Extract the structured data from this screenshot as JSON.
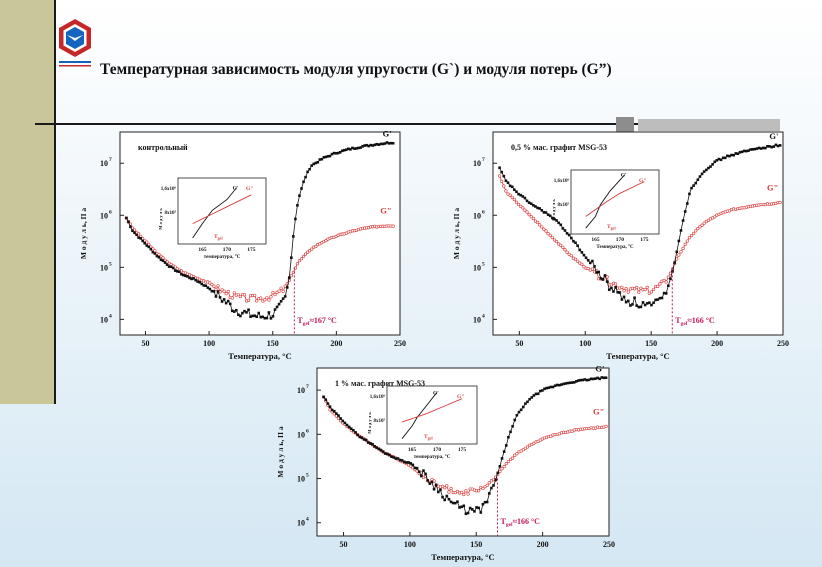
{
  "title": "Температурная зависимость модуля упругости (G`) и модуля потерь (G”)",
  "colors": {
    "sidebar": "#c9c79a",
    "g_prime": "#111111",
    "g_double_prime": "#d93a3a",
    "marker": "#c2185b"
  },
  "chart_data": [
    {
      "type": "scatter",
      "title": "контрольный",
      "xlabel": "Температура, °C",
      "ylabel": "М о д у л ь, П а",
      "xlim": [
        30,
        250
      ],
      "ylim_log10": [
        3.7,
        7.6
      ],
      "xticks": [
        "50",
        "100",
        "150",
        "200",
        "250"
      ],
      "yticks": [
        {
          "v": 4,
          "mant": "10",
          "exp": "4"
        },
        {
          "v": 5,
          "mant": "10",
          "exp": "5"
        },
        {
          "v": 6,
          "mant": "10",
          "exp": "6"
        },
        {
          "v": 7,
          "mant": "10",
          "exp": "7"
        }
      ],
      "series": [
        {
          "name": "G'",
          "x": [
            35,
            40,
            50,
            60,
            70,
            80,
            90,
            100,
            110,
            120,
            130,
            140,
            150,
            155,
            160,
            163,
            165,
            167,
            170,
            175,
            180,
            190,
            200,
            210,
            220,
            230,
            240,
            245
          ],
          "log10": [
            5.95,
            5.7,
            5.45,
            5.2,
            5.0,
            4.85,
            4.75,
            4.6,
            4.4,
            4.2,
            4.1,
            4.05,
            4.1,
            4.2,
            4.4,
            4.8,
            5.3,
            5.8,
            6.3,
            6.7,
            6.95,
            7.1,
            7.2,
            7.27,
            7.32,
            7.36,
            7.39,
            7.4
          ]
        },
        {
          "name": "G''",
          "x": [
            35,
            40,
            50,
            60,
            70,
            80,
            90,
            100,
            110,
            120,
            130,
            140,
            150,
            160,
            165,
            170,
            180,
            190,
            200,
            210,
            220,
            230,
            240,
            245
          ],
          "log10": [
            5.95,
            5.75,
            5.5,
            5.25,
            5.05,
            4.9,
            4.8,
            4.7,
            4.55,
            4.45,
            4.4,
            4.4,
            4.45,
            4.6,
            4.85,
            5.1,
            5.35,
            5.5,
            5.6,
            5.68,
            5.74,
            5.78,
            5.8,
            5.8
          ]
        }
      ],
      "series_labels": [
        "G'",
        "G\""
      ],
      "marker": {
        "x": 167,
        "label_T": "T",
        "label_sub": "gel",
        "label_val": "≈167 °C"
      },
      "inset": {
        "ytick_labels": [
          "1,6x10⁶",
          "8x10⁵"
        ],
        "xtick_labels": [
          "165",
          "170",
          "175"
        ],
        "xlabel": "температура, °C",
        "ylabel": "М о д у л ь",
        "labels": [
          "G'",
          "G\""
        ],
        "tgel_label": "T",
        "tgel_sub": "gel",
        "g1": [
          [
            163,
            4.0
          ],
          [
            165,
            5.2
          ],
          [
            167,
            6.3
          ],
          [
            170,
            7.2
          ],
          [
            172,
            8.2
          ]
        ],
        "g2": [
          [
            163,
            5.2
          ],
          [
            165,
            5.6
          ],
          [
            167,
            6.0
          ],
          [
            170,
            6.6
          ],
          [
            175,
            7.6
          ]
        ]
      }
    },
    {
      "type": "scatter",
      "title": "0,5 % мас. графит MSG-53",
      "xlabel": "Температура, °C",
      "ylabel": "М о д у л ь, П а",
      "xlim": [
        30,
        250
      ],
      "ylim_log10": [
        3.7,
        7.6
      ],
      "xticks": [
        "50",
        "100",
        "150",
        "200",
        "250"
      ],
      "yticks": [
        {
          "v": 4,
          "mant": "10",
          "exp": "4"
        },
        {
          "v": 5,
          "mant": "10",
          "exp": "5"
        },
        {
          "v": 6,
          "mant": "10",
          "exp": "6"
        },
        {
          "v": 7,
          "mant": "10",
          "exp": "7"
        }
      ],
      "series": [
        {
          "name": "G'",
          "x": [
            35,
            40,
            50,
            60,
            70,
            80,
            90,
            100,
            110,
            120,
            130,
            140,
            150,
            155,
            160,
            165,
            168,
            170,
            175,
            180,
            190,
            200,
            210,
            220,
            230,
            240,
            248
          ],
          "log10": [
            6.9,
            6.65,
            6.4,
            6.2,
            6.05,
            5.85,
            5.55,
            5.2,
            4.9,
            4.6,
            4.4,
            4.3,
            4.25,
            4.3,
            4.45,
            4.8,
            5.1,
            5.4,
            6.0,
            6.5,
            6.85,
            7.05,
            7.15,
            7.22,
            7.28,
            7.32,
            7.35
          ]
        },
        {
          "name": "G''",
          "x": [
            35,
            40,
            50,
            60,
            70,
            80,
            90,
            100,
            110,
            120,
            130,
            140,
            150,
            160,
            165,
            170,
            180,
            190,
            200,
            210,
            220,
            230,
            240,
            248
          ],
          "log10": [
            6.75,
            6.45,
            6.2,
            5.95,
            5.7,
            5.45,
            5.2,
            5.0,
            4.85,
            4.7,
            4.6,
            4.55,
            4.55,
            4.7,
            4.9,
            5.2,
            5.6,
            5.85,
            6.0,
            6.1,
            6.15,
            6.2,
            6.22,
            6.25
          ]
        }
      ],
      "series_labels": [
        "G'",
        "G\""
      ],
      "marker": {
        "x": 166,
        "label_T": "T",
        "label_sub": "gel",
        "label_val": "≈166 °C"
      },
      "inset": {
        "ytick_labels": [
          "1,6x10⁶",
          "8x10⁵"
        ],
        "xtick_labels": [
          "165",
          "170",
          "175"
        ],
        "xlabel": "Температура, °C",
        "ylabel": "М о д у л ь",
        "labels": [
          "G'",
          "G\""
        ],
        "tgel_label": "T",
        "tgel_sub": "gel",
        "g1": [
          [
            163,
            4.0
          ],
          [
            165,
            5.0
          ],
          [
            166,
            6.0
          ],
          [
            168,
            7.2
          ],
          [
            171,
            8.6
          ]
        ],
        "g2": [
          [
            163,
            5.0
          ],
          [
            165,
            5.6
          ],
          [
            167,
            6.2
          ],
          [
            170,
            7.0
          ],
          [
            175,
            8.0
          ]
        ]
      }
    },
    {
      "type": "scatter",
      "title": "1 % мас. графит MSG-53",
      "xlabel": "Температура, °C",
      "ylabel": "М о д у л ь, П а",
      "xlim": [
        30,
        250
      ],
      "ylim_log10": [
        3.7,
        7.5
      ],
      "xticks": [
        "50",
        "100",
        "150",
        "200",
        "250"
      ],
      "yticks": [
        {
          "v": 4,
          "mant": "10",
          "exp": "4"
        },
        {
          "v": 5,
          "mant": "10",
          "exp": "5"
        },
        {
          "v": 6,
          "mant": "10",
          "exp": "6"
        },
        {
          "v": 7,
          "mant": "10",
          "exp": "7"
        }
      ],
      "series": [
        {
          "name": "G'",
          "x": [
            35,
            40,
            50,
            60,
            70,
            80,
            90,
            100,
            110,
            120,
            130,
            140,
            150,
            155,
            160,
            165,
            170,
            175,
            180,
            190,
            200,
            210,
            220,
            230,
            240,
            248
          ],
          "log10": [
            6.85,
            6.6,
            6.3,
            6.0,
            5.8,
            5.6,
            5.45,
            5.35,
            5.1,
            4.8,
            4.5,
            4.3,
            4.25,
            4.35,
            4.6,
            5.0,
            5.5,
            6.0,
            6.4,
            6.8,
            7.0,
            7.1,
            7.17,
            7.22,
            7.26,
            7.28
          ]
        },
        {
          "name": "G''",
          "x": [
            35,
            40,
            50,
            60,
            70,
            80,
            90,
            100,
            110,
            120,
            130,
            140,
            150,
            160,
            165,
            170,
            180,
            190,
            200,
            210,
            220,
            230,
            240,
            248
          ],
          "log10": [
            6.85,
            6.55,
            6.25,
            6.0,
            5.8,
            5.6,
            5.45,
            5.3,
            5.05,
            4.85,
            4.75,
            4.7,
            4.7,
            4.85,
            5.05,
            5.25,
            5.55,
            5.75,
            5.9,
            6.0,
            6.07,
            6.12,
            6.15,
            6.18
          ]
        }
      ],
      "series_labels": [
        "G'",
        "G\""
      ],
      "marker": {
        "x": 166,
        "label_T": "T",
        "label_sub": "gel",
        "label_val": "≈166 °C"
      },
      "inset": {
        "ytick_labels": [
          "1,6x10⁶",
          "8x10⁵"
        ],
        "xtick_labels": [
          "165",
          "170",
          "175"
        ],
        "xlabel": "температура, °C",
        "ylabel": "М о д у л ь",
        "labels": [
          "G'",
          "G\""
        ],
        "tgel_label": "T",
        "tgel_sub": "gel",
        "g1": [
          [
            163,
            4.0
          ],
          [
            165,
            5.2
          ],
          [
            166,
            6.0
          ],
          [
            168,
            7.2
          ],
          [
            170,
            8.4
          ]
        ],
        "g2": [
          [
            163,
            5.6
          ],
          [
            165,
            5.9
          ],
          [
            168,
            6.4
          ],
          [
            172,
            7.2
          ],
          [
            175,
            7.8
          ]
        ]
      }
    }
  ]
}
